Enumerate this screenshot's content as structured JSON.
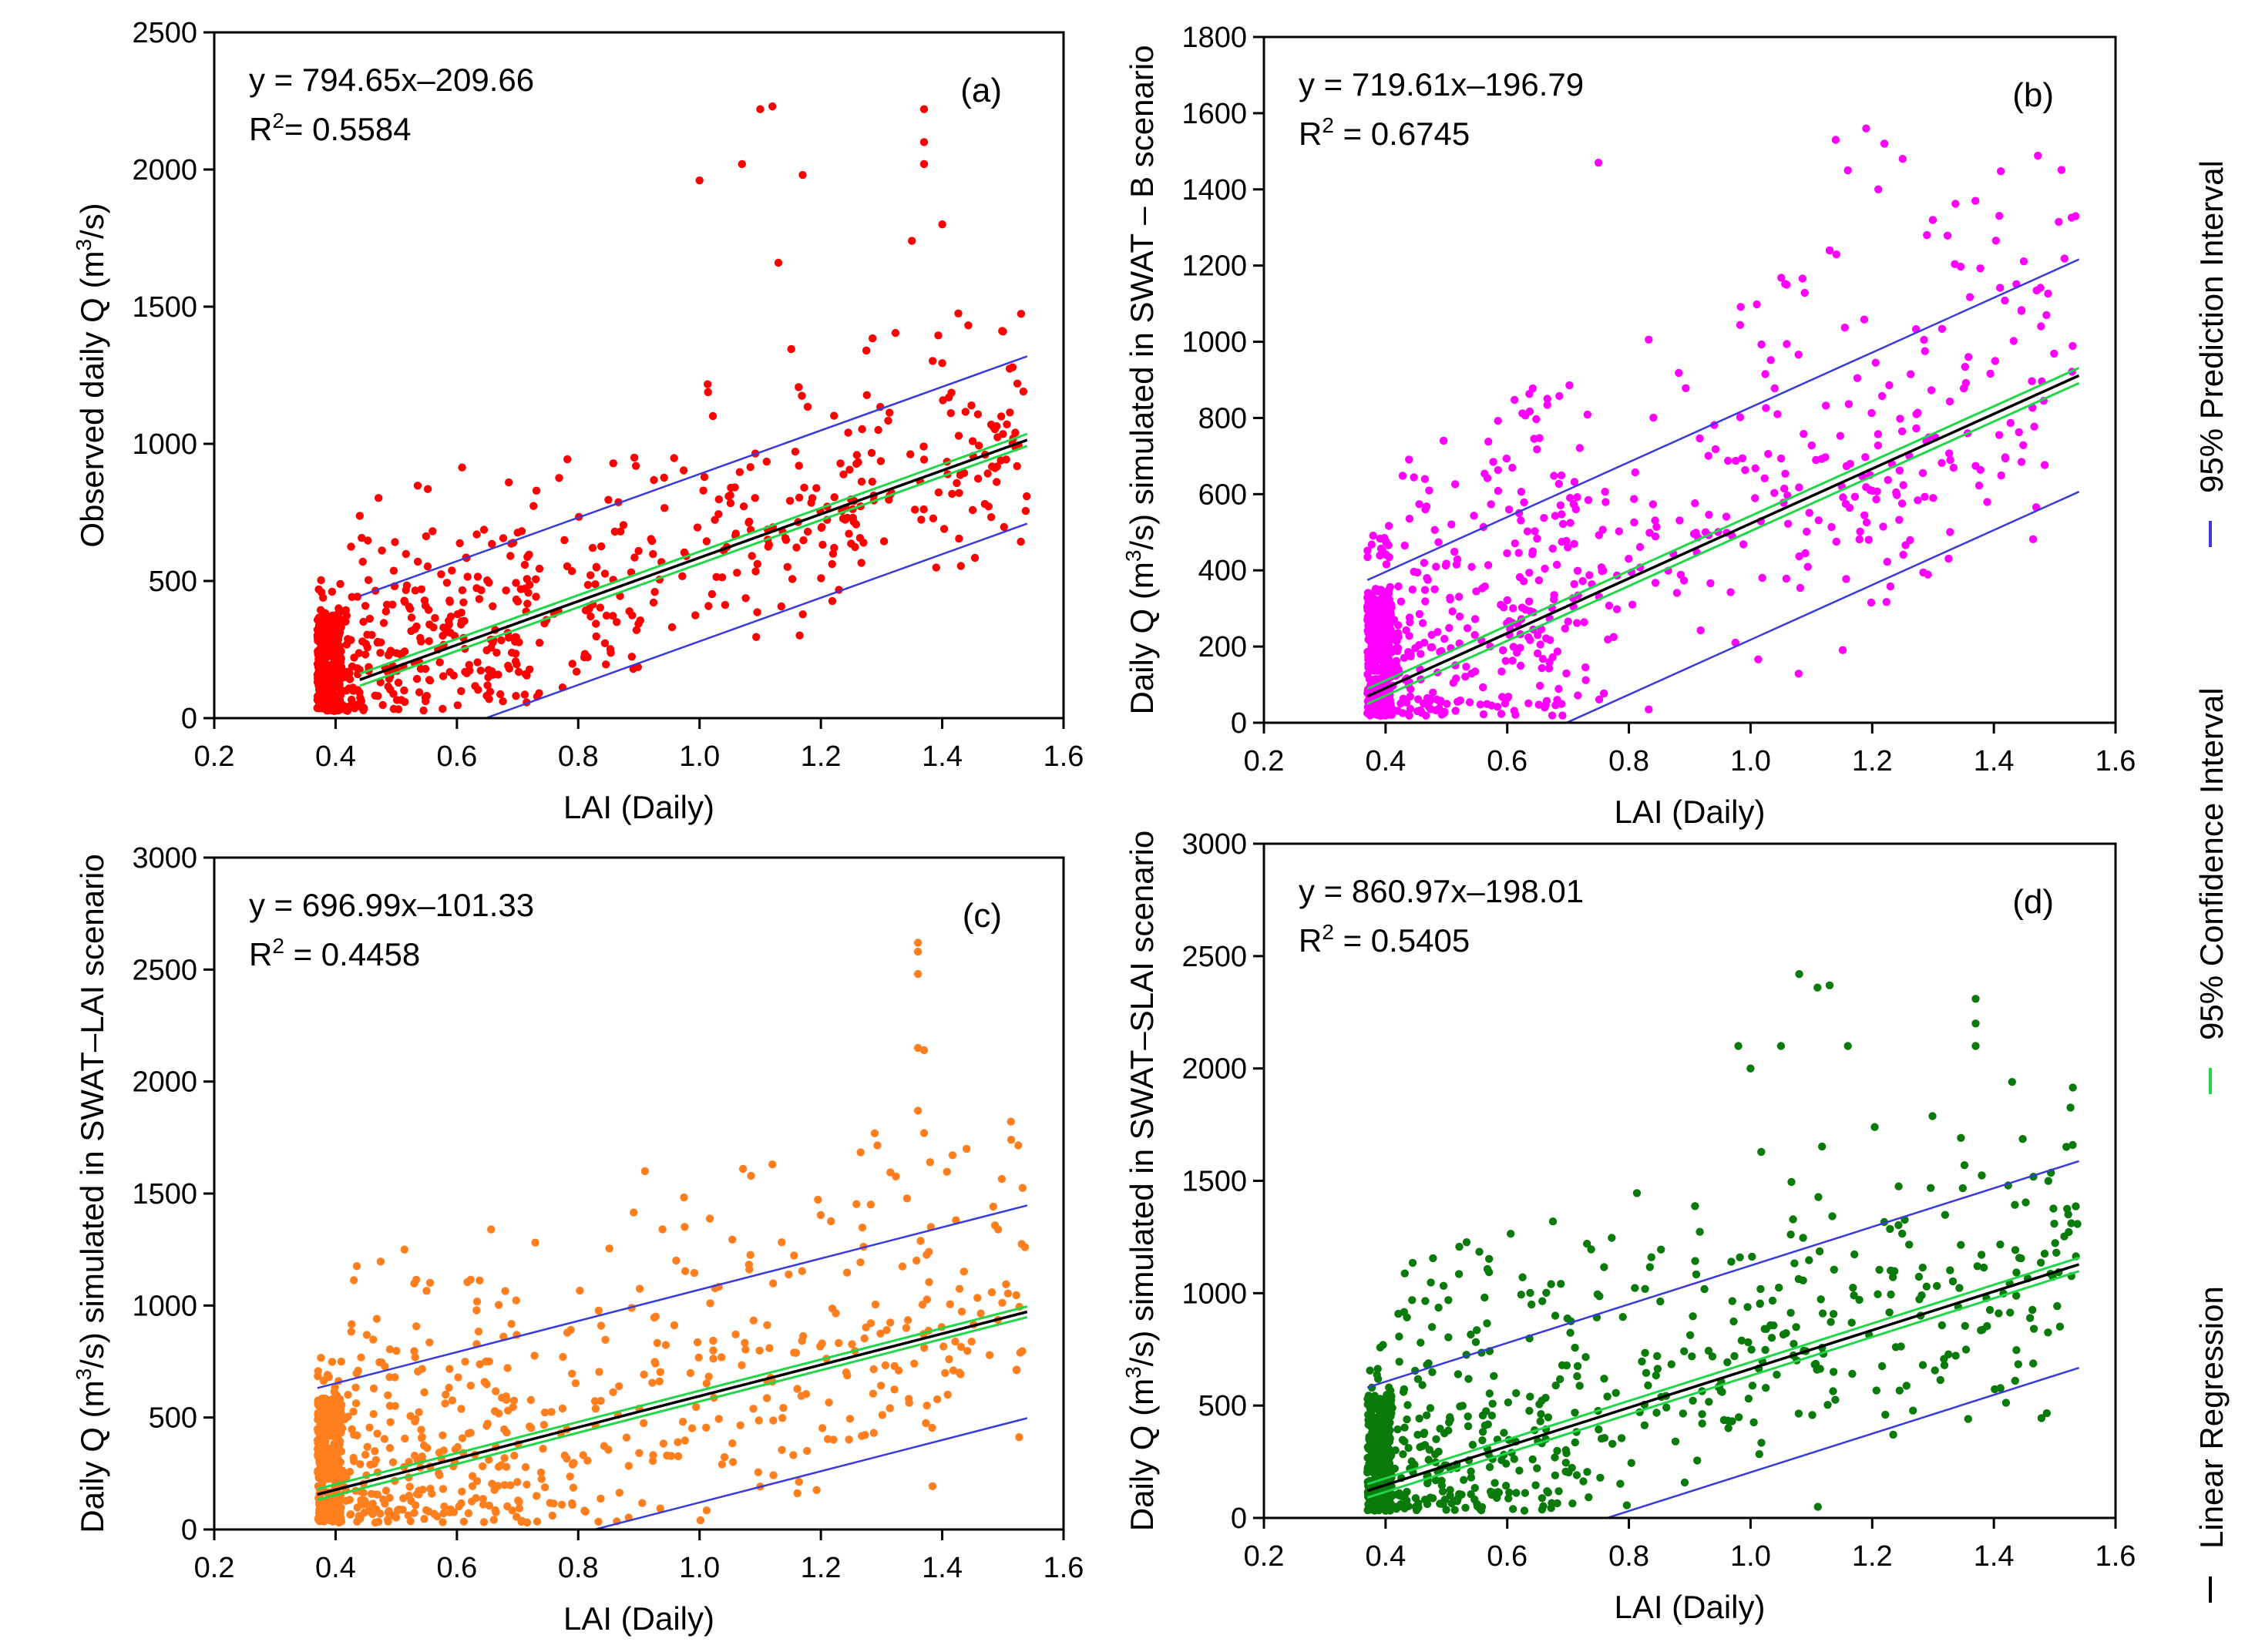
{
  "figure": {
    "legend": [
      {
        "label": "95% Prediction Interval",
        "color": "#3a3adb"
      },
      {
        "label": "95% Confidence Interval",
        "color": "#22d64a"
      },
      {
        "label": "Linear Regression",
        "color": "#000000"
      }
    ]
  },
  "chart_data": [
    {
      "type": "scatter",
      "panel_label": "(a)",
      "equation": "y = 794.65x–209.66",
      "r2_prefix": "R",
      "r2_sup": "2",
      "r2_value": "= 0.5584",
      "xlabel": "LAI (Daily)",
      "ylabel_parts": [
        "Observed daily Q (m",
        "3",
        "/s)"
      ],
      "xlim": [
        0.2,
        1.6
      ],
      "ylim": [
        0,
        2500
      ],
      "xticks": [
        "0.2",
        "0.4",
        "0.6",
        "0.8",
        "1.0",
        "1.2",
        "1.4",
        "1.6"
      ],
      "yticks": [
        "0",
        "500",
        "1000",
        "1500",
        "2000",
        "2500"
      ],
      "point_color": "#ff0000",
      "slope": 794.65,
      "intercept": -209.66,
      "pi_halfwidth": 305,
      "ci_halfwidth": 22,
      "x_range": [
        0.44,
        1.54
      ],
      "seed": 11,
      "n_points": 900,
      "cap": 2230,
      "outliers": [
        [
          1.1,
          2220
        ],
        [
          1.12,
          2230
        ],
        [
          1.37,
          2220
        ],
        [
          1.37,
          2100
        ],
        [
          1.37,
          2020
        ],
        [
          1.35,
          1740
        ],
        [
          1.4,
          1800
        ],
        [
          1.0,
          1960
        ],
        [
          1.07,
          2020
        ],
        [
          1.17,
          1980
        ],
        [
          1.13,
          1660
        ]
      ]
    },
    {
      "type": "scatter",
      "panel_label": "(b)",
      "equation": "y = 719.61x–196.79",
      "r2_prefix": "R",
      "r2_sup": "2",
      "r2_value": " = 0.6745",
      "xlabel": "LAI (Daily)",
      "ylabel_parts": [
        "Daily Q (m",
        "3",
        "/s) simulated in SWAT – B scenario"
      ],
      "xlim": [
        0.2,
        1.6
      ],
      "ylim": [
        0,
        1800
      ],
      "xticks": [
        "0.2",
        "0.4",
        "0.6",
        "0.8",
        "1.0",
        "1.2",
        "1.4",
        "1.6"
      ],
      "yticks": [
        "0",
        "200",
        "400",
        "600",
        "800",
        "1000",
        "1200",
        "1400",
        "1600",
        "1800"
      ],
      "point_color": "#ff00ff",
      "slope": 719.61,
      "intercept": -196.79,
      "pi_halfwidth": 305,
      "ci_halfwidth": 20,
      "x_range": [
        0.37,
        1.54
      ],
      "seed": 23,
      "n_points": 900,
      "cap": 1560,
      "outliers": [
        [
          0.75,
          1470
        ],
        [
          1.14,
          1530
        ],
        [
          1.19,
          1560
        ],
        [
          1.22,
          1520
        ],
        [
          1.25,
          1480
        ],
        [
          1.16,
          1450
        ],
        [
          1.21,
          1400
        ],
        [
          1.29,
          1280
        ],
        [
          1.13,
          1240
        ]
      ]
    },
    {
      "type": "scatter",
      "panel_label": "(c)",
      "equation": "y = 696.99x–101.33",
      "r2_prefix": "R",
      "r2_sup": "2",
      "r2_value": " = 0.4458",
      "xlabel": "LAI (Daily)",
      "ylabel_parts": [
        "Daily Q (m",
        "3",
        "/s) simulated in SWAT–LAI scenario"
      ],
      "xlim": [
        0.2,
        1.6
      ],
      "ylim": [
        0,
        3000
      ],
      "xticks": [
        "0.2",
        "0.4",
        "0.6",
        "0.8",
        "1.0",
        "1.2",
        "1.4",
        "1.6"
      ],
      "yticks": [
        "0",
        "500",
        "1000",
        "1500",
        "2000",
        "2500",
        "3000"
      ],
      "point_color": "#ff7f1f",
      "slope": 696.99,
      "intercept": -101.33,
      "pi_halfwidth": 475,
      "ci_halfwidth": 24,
      "x_range": [
        0.37,
        1.54
      ],
      "seed": 37,
      "n_points": 900,
      "cap": 2620,
      "outliers": [
        [
          1.36,
          2620
        ],
        [
          1.36,
          2580
        ],
        [
          1.36,
          2480
        ],
        [
          1.36,
          2150
        ],
        [
          1.37,
          2140
        ],
        [
          1.36,
          1870
        ],
        [
          1.37,
          1770
        ],
        [
          1.38,
          1640
        ],
        [
          1.44,
          1700
        ],
        [
          1.12,
          1630
        ],
        [
          0.91,
          1600
        ]
      ]
    },
    {
      "type": "scatter",
      "panel_label": "(d)",
      "equation": "y = 860.97x–198.01",
      "r2_prefix": "R",
      "r2_sup": "2",
      "r2_value": " = 0.5405",
      "xlabel": "LAI (Daily)",
      "ylabel_parts": [
        "Daily Q (m",
        "3",
        "/s) simulated in SWAT–SLAI scenario"
      ],
      "xlim": [
        0.2,
        1.6
      ],
      "ylim": [
        0,
        3000
      ],
      "xticks": [
        "0.2",
        "0.4",
        "0.6",
        "0.8",
        "1.0",
        "1.2",
        "1.4",
        "1.6"
      ],
      "yticks": [
        "0",
        "500",
        "1000",
        "1500",
        "2000",
        "2500",
        "3000"
      ],
      "point_color": "#0a7a0a",
      "slope": 860.97,
      "intercept": -198.01,
      "pi_halfwidth": 460,
      "ci_halfwidth": 30,
      "x_range": [
        0.37,
        1.54
      ],
      "seed": 53,
      "n_points": 900,
      "cap": 2420,
      "outliers": [
        [
          1.08,
          2420
        ],
        [
          1.11,
          2360
        ],
        [
          1.13,
          2370
        ],
        [
          1.37,
          2310
        ],
        [
          1.37,
          2200
        ],
        [
          1.05,
          2100
        ],
        [
          1.16,
          2100
        ],
        [
          0.98,
          2100
        ],
        [
          1.43,
          1940
        ],
        [
          1.0,
          2000
        ],
        [
          1.37,
          2100
        ]
      ]
    }
  ]
}
